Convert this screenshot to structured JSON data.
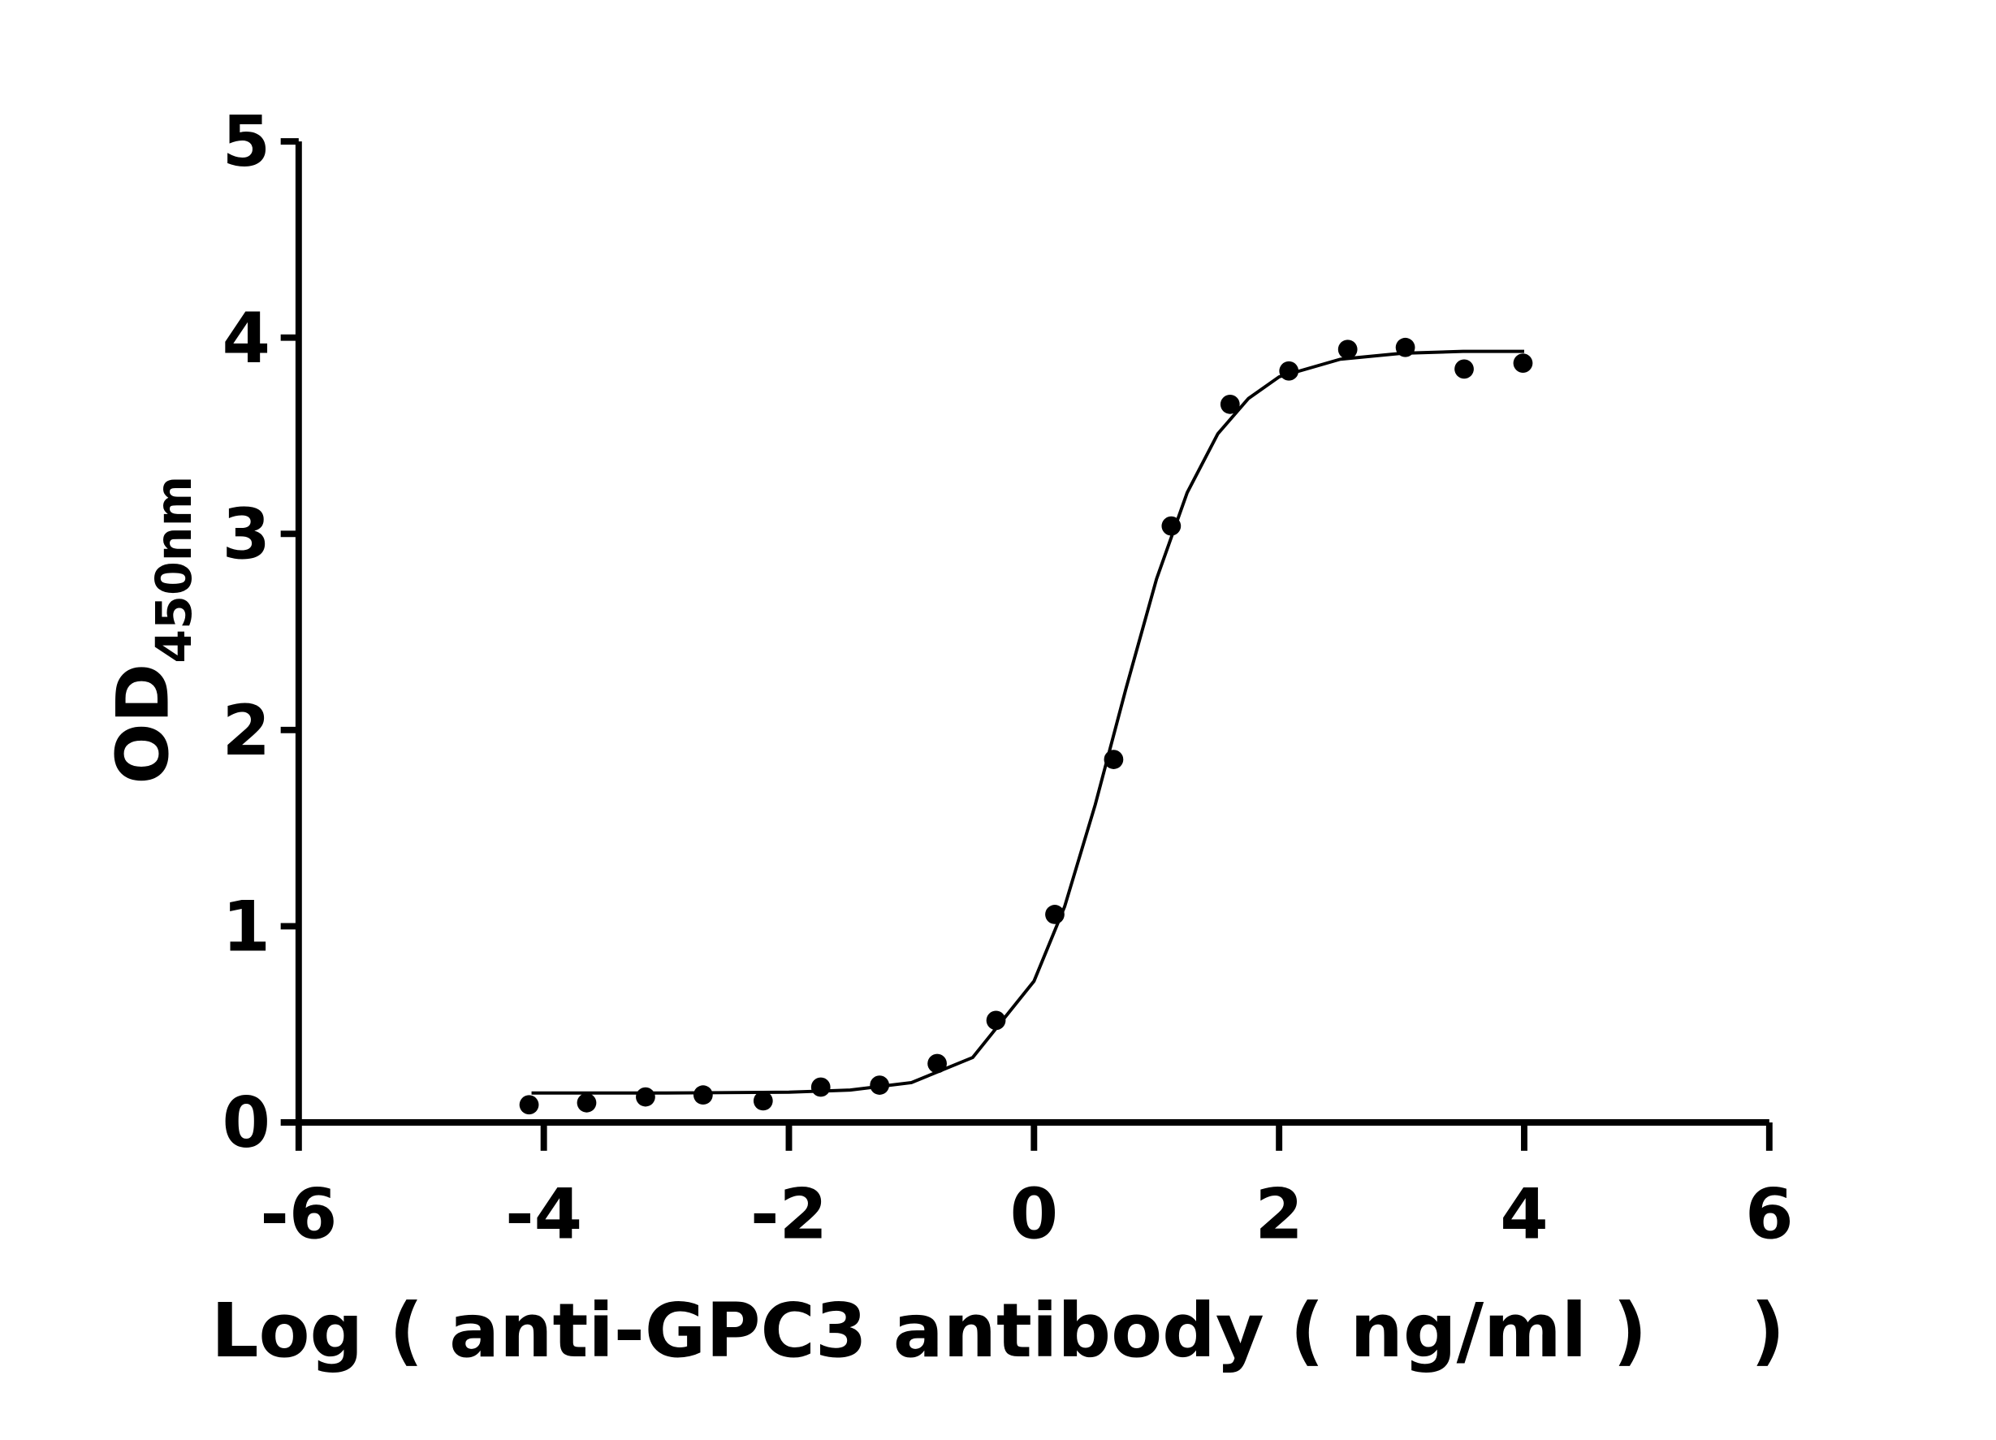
{
  "chart_data": {
    "type": "scatter",
    "y_label": "OD",
    "y_label_subscript": "450nm",
    "x_label": "Log ( anti-GPC3 antibody ( ng/ml )    )",
    "color": "#000000",
    "xlim": [
      -6,
      6
    ],
    "xticks": [
      -6,
      -4,
      -2,
      0,
      2,
      4,
      6
    ],
    "ylim": [
      0,
      5
    ],
    "yticks": [
      0,
      1,
      2,
      3,
      4,
      5
    ],
    "x": [
      -4.12,
      -3.65,
      -3.17,
      -2.7,
      -2.21,
      -1.74,
      -1.26,
      -0.79,
      -0.31,
      0.17,
      0.65,
      1.12,
      1.6,
      2.08,
      2.56,
      3.03,
      3.51,
      3.99
    ],
    "values": [
      0.09,
      0.1,
      0.13,
      0.14,
      0.11,
      0.18,
      0.19,
      0.3,
      0.52,
      1.06,
      1.85,
      3.04,
      3.66,
      3.83,
      3.94,
      3.95,
      3.84,
      3.87
    ],
    "curve": {
      "x": [
        -4.1,
        -3,
        -2,
        -1.5,
        -1,
        -0.5,
        0,
        0.25,
        0.5,
        0.75,
        1,
        1.25,
        1.5,
        1.75,
        2,
        2.5,
        3,
        3.5,
        4
      ],
      "y": [
        0.15,
        0.15,
        0.154,
        0.165,
        0.203,
        0.331,
        0.72,
        1.1,
        1.62,
        2.21,
        2.77,
        3.21,
        3.51,
        3.69,
        3.8,
        3.89,
        3.92,
        3.93,
        3.93
      ]
    }
  }
}
